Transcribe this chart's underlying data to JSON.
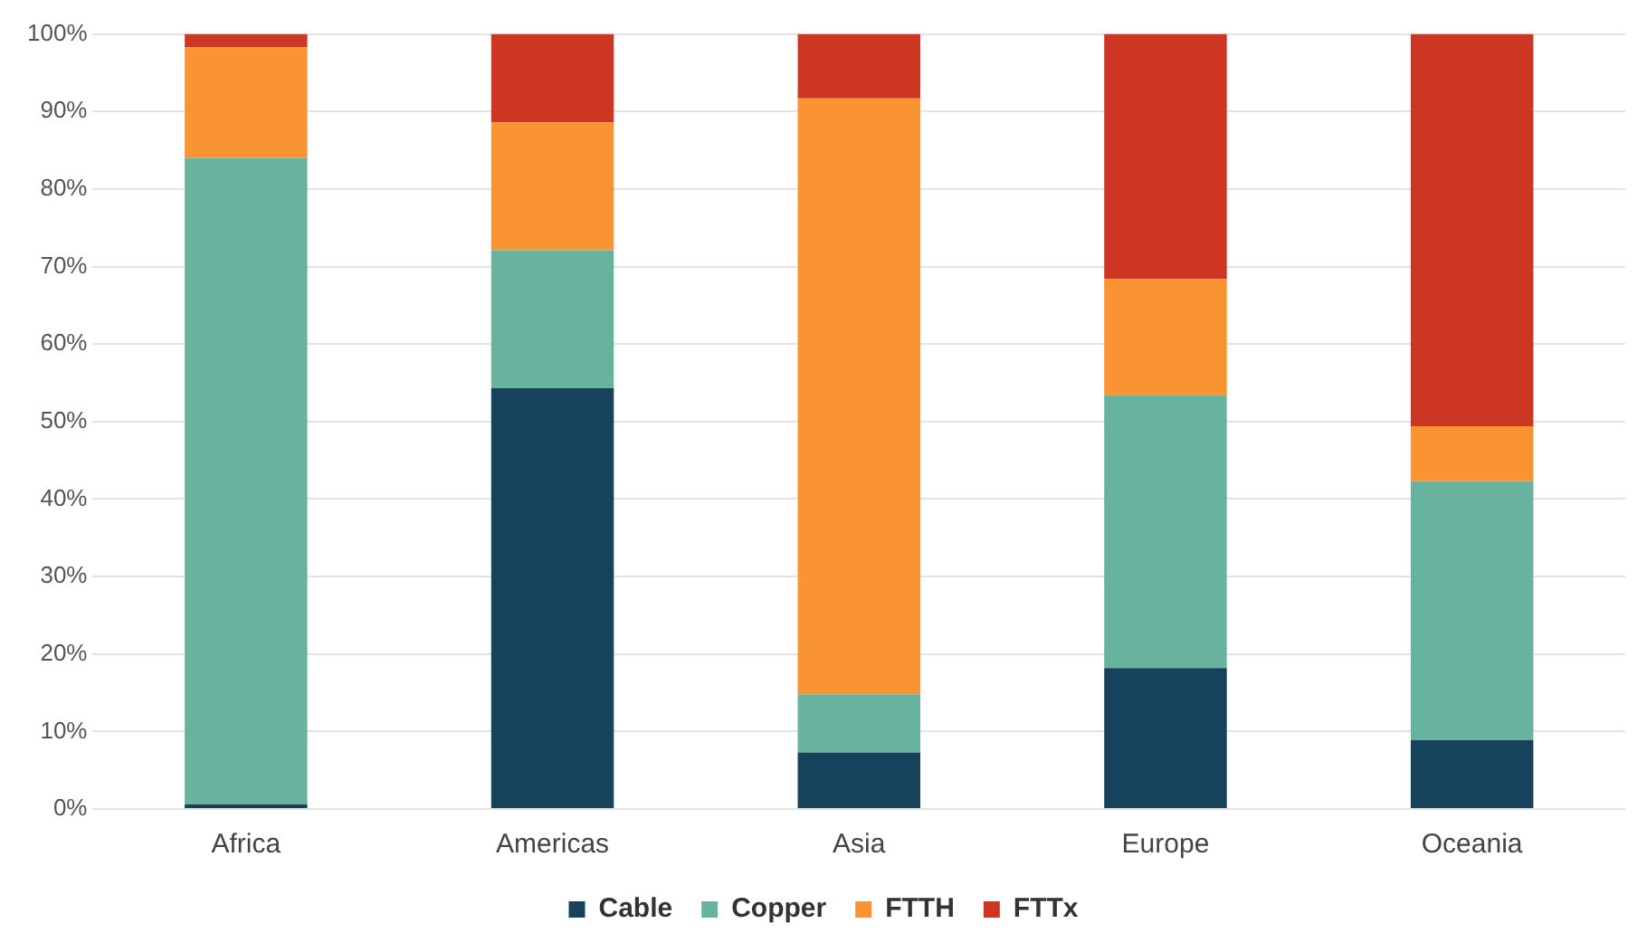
{
  "chart_data": {
    "type": "bar",
    "stacked": true,
    "categories": [
      "Africa",
      "Americas",
      "Asia",
      "Europe",
      "Oceania"
    ],
    "series": [
      {
        "name": "Cable",
        "color": "#16425b",
        "values": [
          0.6,
          54.3,
          7.3,
          18.2,
          8.9
        ]
      },
      {
        "name": "Copper",
        "color": "#67b39e",
        "values": [
          83.4,
          17.8,
          7.5,
          35.2,
          33.4
        ]
      },
      {
        "name": "FTTH",
        "color": "#fa9331",
        "values": [
          14.3,
          16.5,
          76.9,
          15.0,
          7.1
        ]
      },
      {
        "name": "FTTx",
        "color": "#cc3622",
        "values": [
          1.7,
          11.4,
          8.3,
          31.6,
          50.6
        ]
      }
    ],
    "ylim": [
      0,
      100
    ],
    "yticks": [
      {
        "value": 0,
        "label": "0%"
      },
      {
        "value": 10,
        "label": "10%"
      },
      {
        "value": 20,
        "label": "20%"
      },
      {
        "value": 30,
        "label": "30%"
      },
      {
        "value": 40,
        "label": "40%"
      },
      {
        "value": 50,
        "label": "50%"
      },
      {
        "value": 60,
        "label": "60%"
      },
      {
        "value": 70,
        "label": "70%"
      },
      {
        "value": 80,
        "label": "80%"
      },
      {
        "value": 90,
        "label": "90%"
      },
      {
        "value": 100,
        "label": "100%"
      }
    ],
    "grid": "y",
    "legend": "bottom"
  }
}
